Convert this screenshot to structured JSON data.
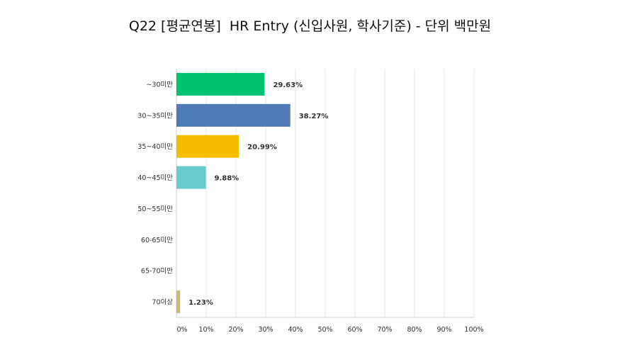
{
  "chart_data": {
    "type": "bar",
    "orientation": "horizontal",
    "title": "Q22 [평균연봉]  HR Entry (신입사원, 학사기준) - 단위 백만원",
    "categories": [
      "~30미만",
      "30~35미만",
      "35~40미만",
      "40~45미만",
      "50~55미만",
      "60-65미만",
      "65-70미만",
      "70이상"
    ],
    "values": [
      29.63,
      38.27,
      20.99,
      9.88,
      0,
      0,
      0,
      1.23
    ],
    "data_labels": [
      "29.63%",
      "38.27%",
      "20.99%",
      "9.88%",
      "",
      "",
      "",
      "1.23%"
    ],
    "colors": [
      "#00c271",
      "#4f7ab8",
      "#f5bf00",
      "#68cbcd",
      "#e7d1a5",
      "#6b5ea8",
      "#d7727a",
      "#c9b877"
    ],
    "xlim": [
      0,
      100
    ],
    "x_ticks": [
      "0%",
      "10%",
      "20%",
      "30%",
      "40%",
      "50%",
      "60%",
      "70%",
      "80%",
      "90%",
      "100%"
    ],
    "grid": true,
    "legend": "none",
    "xlabel": "",
    "ylabel": ""
  }
}
